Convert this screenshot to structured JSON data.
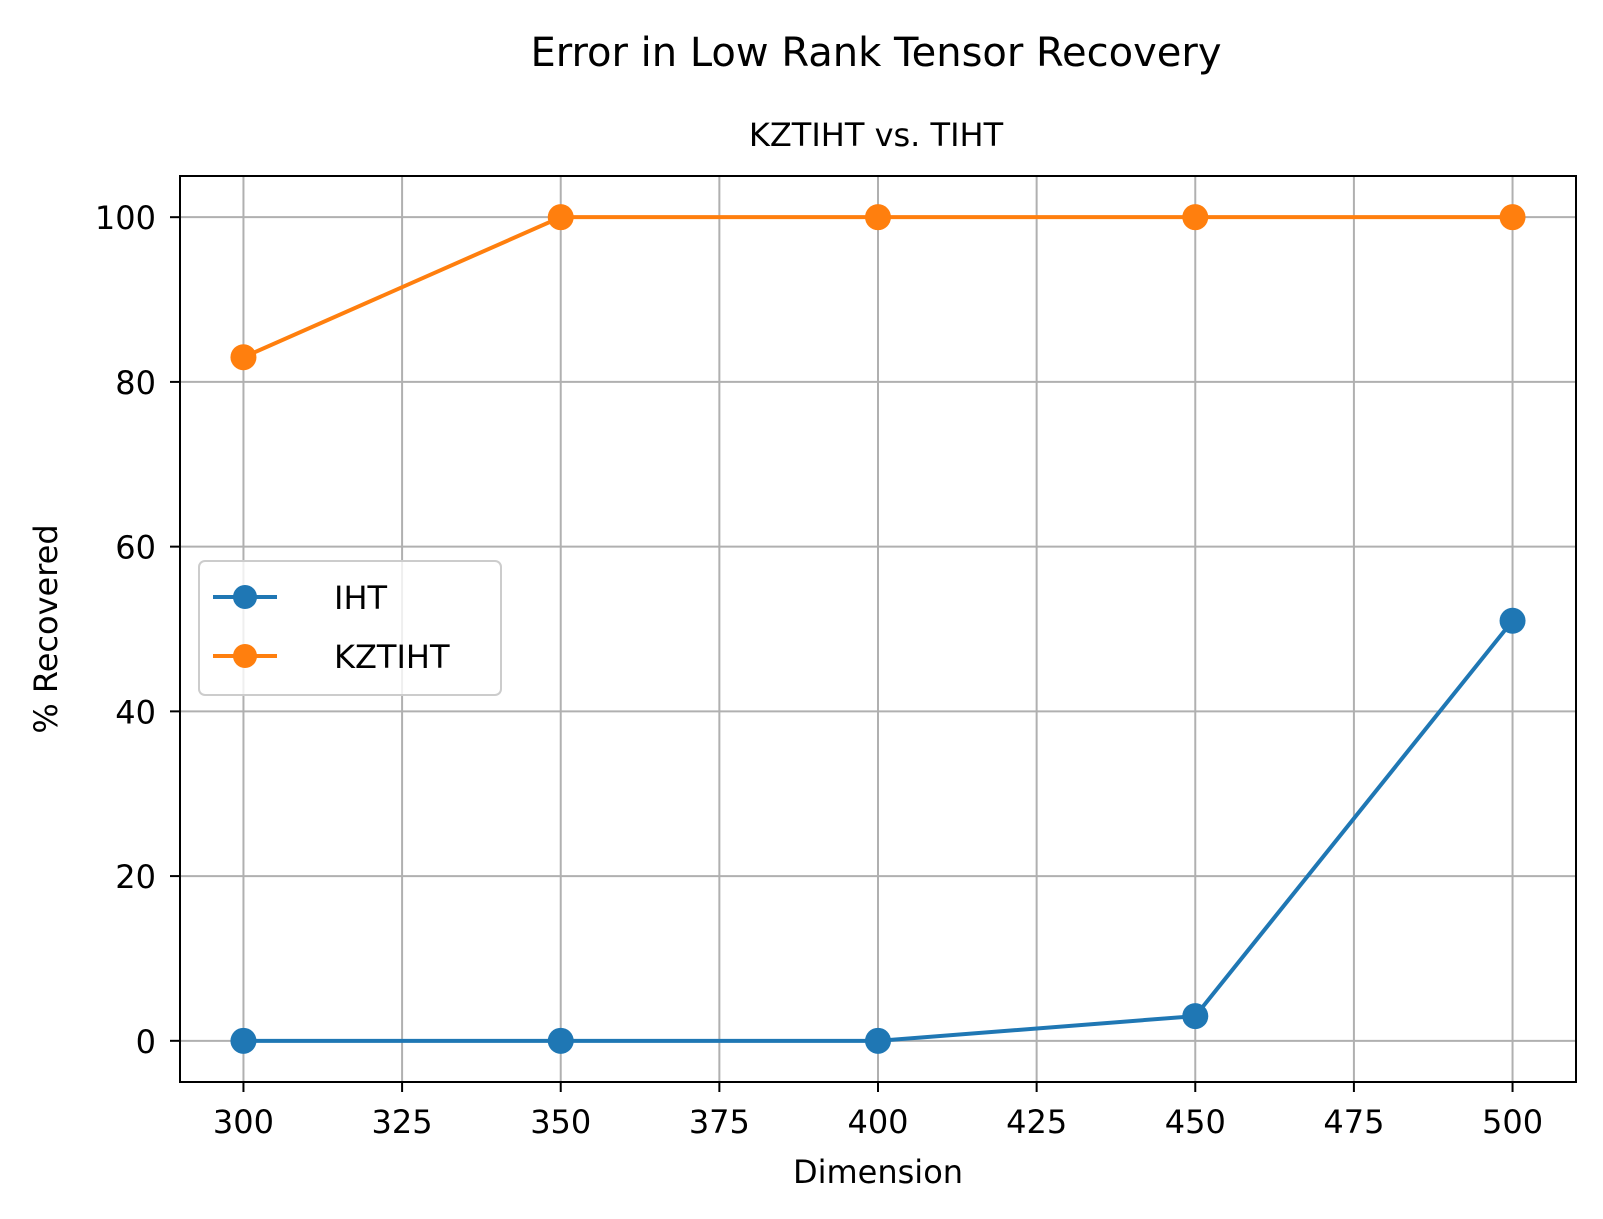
{
  "chart_data": {
    "type": "line",
    "title": "Error in Low Rank Tensor Recovery",
    "subtitle": "KZTIHT vs. TIHT",
    "xlabel": "Dimension",
    "ylabel": "% Recovered",
    "xlim": [
      290,
      510
    ],
    "ylim": [
      -5,
      105
    ],
    "xticks": [
      300,
      325,
      350,
      375,
      400,
      425,
      450,
      475,
      500
    ],
    "yticks": [
      0,
      20,
      40,
      60,
      80,
      100
    ],
    "grid": true,
    "legend_position": "center-left",
    "x": [
      300,
      350,
      400,
      450,
      500
    ],
    "series": [
      {
        "name": "IHT",
        "color": "#1f77b4",
        "marker": "circle",
        "values": [
          0,
          0,
          0,
          3,
          51
        ]
      },
      {
        "name": "KZTIHT",
        "color": "#ff7f0e",
        "marker": "circle",
        "values": [
          83,
          100,
          100,
          100,
          100
        ]
      }
    ]
  }
}
